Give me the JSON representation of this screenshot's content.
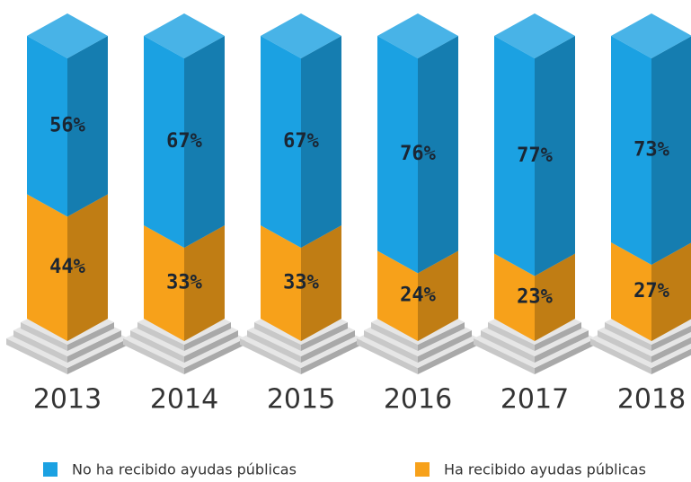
{
  "chart_data": {
    "type": "bar",
    "stacked": true,
    "categories": [
      "2013",
      "2014",
      "2015",
      "2016",
      "2017",
      "2018"
    ],
    "series": [
      {
        "name": "Ha recibido ayudas públicas",
        "color": "#f7a11a",
        "values": [
          44,
          33,
          33,
          24,
          23,
          27
        ],
        "value_labels": [
          "44%",
          "33%",
          "33%",
          "24%",
          "23%",
          "27%"
        ]
      },
      {
        "name": "No ha recibido ayudas públicas",
        "color": "#1ba1e2",
        "values": [
          56,
          67,
          67,
          76,
          77,
          73
        ],
        "value_labels": [
          "56%",
          "67%",
          "67%",
          "76%",
          "77%",
          "73%"
        ]
      }
    ],
    "legend": "bottom"
  }
}
